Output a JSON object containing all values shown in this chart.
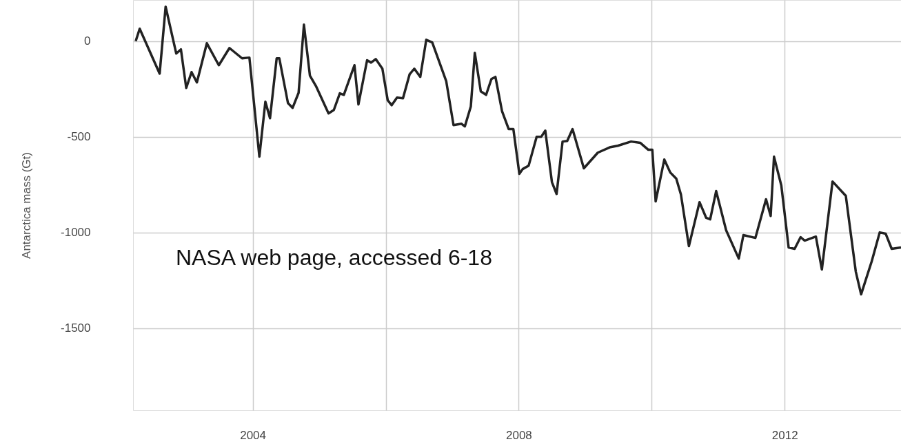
{
  "chart_data": {
    "type": "line",
    "ylabel": "Antarctica mass (Gt)",
    "annotations": [
      "NASA web page, accessed 6-18"
    ],
    "x": [
      2002.24,
      2002.3,
      2002.6,
      2002.69,
      2002.85,
      2002.92,
      2003.0,
      2003.08,
      2003.16,
      2003.31,
      2003.49,
      2003.65,
      2003.84,
      2003.95,
      2004.1,
      2004.19,
      2004.26,
      2004.36,
      2004.4,
      2004.53,
      2004.6,
      2004.69,
      2004.77,
      2004.86,
      2004.95,
      2005.14,
      2005.22,
      2005.31,
      2005.37,
      2005.53,
      2005.59,
      2005.72,
      2005.78,
      2005.85,
      2005.95,
      2006.03,
      2006.09,
      2006.17,
      2006.26,
      2006.36,
      2006.43,
      2006.52,
      2006.61,
      2006.7,
      2006.91,
      2007.02,
      2007.14,
      2007.19,
      2007.28,
      2007.34,
      2007.43,
      2007.51,
      2007.59,
      2007.65,
      2007.75,
      2007.85,
      2007.92,
      2008.01,
      2008.06,
      2008.15,
      2008.27,
      2008.34,
      2008.4,
      2008.5,
      2008.57,
      2008.66,
      2008.73,
      2008.81,
      2008.98,
      2009.19,
      2009.38,
      2009.49,
      2009.69,
      2009.83,
      2009.95,
      2010.01,
      2010.06,
      2010.19,
      2010.28,
      2010.37,
      2010.44,
      2010.56,
      2010.72,
      2010.82,
      2010.88,
      2010.97,
      2011.12,
      2011.31,
      2011.38,
      2011.56,
      2011.72,
      2011.79,
      2011.84,
      2011.95,
      2012.06,
      2012.15,
      2012.24,
      2012.3,
      2012.47,
      2012.56,
      2012.72,
      2012.92,
      2013.07,
      2013.15,
      2013.31,
      2013.43,
      2013.52,
      2013.61,
      2013.75
    ],
    "series": [
      {
        "color": "#222222",
        "values": [
          0,
          65,
          -170,
          180,
          -65,
          -43,
          -245,
          -162,
          -216,
          -11,
          -126,
          -36,
          -90,
          -86,
          -604,
          -317,
          -403,
          -90,
          -90,
          -324,
          -349,
          -270,
          86,
          -180,
          -234,
          -378,
          -360,
          -273,
          -281,
          -126,
          -331,
          -100,
          -112,
          -94,
          -144,
          -309,
          -335,
          -295,
          -299,
          -173,
          -144,
          -187,
          7,
          -7,
          -209,
          -439,
          -432,
          -446,
          -342,
          -61,
          -263,
          -281,
          -198,
          -187,
          -367,
          -460,
          -460,
          -694,
          -669,
          -651,
          -500,
          -500,
          -468,
          -737,
          -799,
          -525,
          -522,
          -460,
          -665,
          -583,
          -554,
          -547,
          -525,
          -532,
          -568,
          -568,
          -838,
          -619,
          -687,
          -719,
          -802,
          -1072,
          -842,
          -924,
          -932,
          -784,
          -989,
          -1137,
          -1014,
          -1029,
          -827,
          -914,
          -604,
          -755,
          -1079,
          -1086,
          -1025,
          -1043,
          -1022,
          -1194,
          -734,
          -809,
          -1205,
          -1324,
          -1151,
          -1000,
          -1007,
          -1086,
          -1079
        ]
      }
    ],
    "xlim": [
      2002.2,
      2013.75
    ],
    "xticks": [
      2004,
      {
        "value": 2006,
        "label": null
      },
      2008,
      {
        "value": 2010,
        "label": null
      },
      2012
    ],
    "ylim": [
      -1930,
      215
    ],
    "yticks": [
      0,
      -500,
      -1000,
      -1500
    ],
    "grid": true,
    "line_style": "solid"
  }
}
